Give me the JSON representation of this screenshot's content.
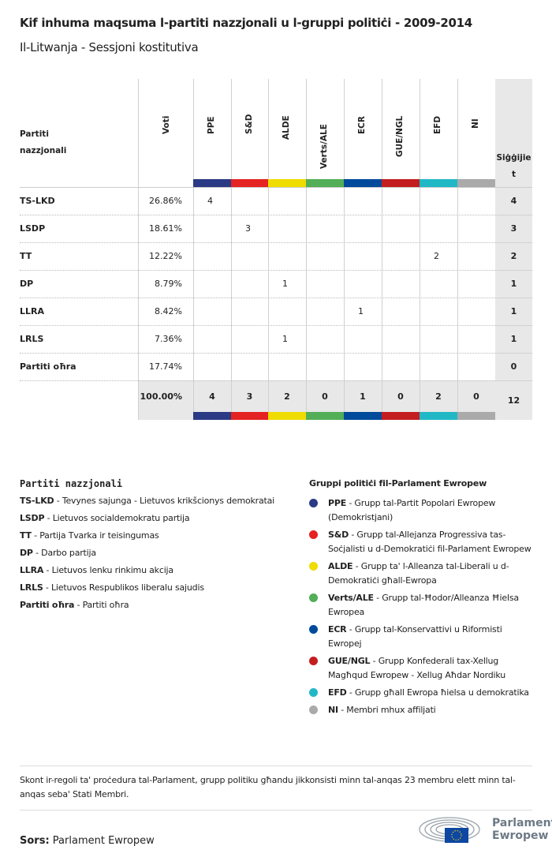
{
  "title": "Kif inhuma maqsuma l-partiti nazzjonali u l-gruppi politiċi - 2009-2014",
  "subtitle": "Il-Litwanja - Sessjoni kostitutiva",
  "table": {
    "party_header": "Partiti nazzjonali",
    "votes_header": "Voti",
    "seats_header": "Siġġijiet",
    "groups": [
      {
        "code": "PPE",
        "color": "#2a3a84"
      },
      {
        "code": "S&D",
        "color": "#e42322"
      },
      {
        "code": "ALDE",
        "color": "#efdc00"
      },
      {
        "code": "Verts/ALE",
        "color": "#52ae57"
      },
      {
        "code": "ECR",
        "color": "#004a9b"
      },
      {
        "code": "GUE/NGL",
        "color": "#c41d1f"
      },
      {
        "code": "EFD",
        "color": "#21b8c6"
      },
      {
        "code": "NI",
        "color": "#aaaaaa"
      }
    ],
    "rows": [
      {
        "party": "TS-LKD",
        "votes": "26.86%",
        "seats_by_group": [
          "4",
          "",
          "",
          "",
          "",
          "",
          "",
          ""
        ],
        "seats": "4"
      },
      {
        "party": "LSDP",
        "votes": "18.61%",
        "seats_by_group": [
          "",
          "3",
          "",
          "",
          "",
          "",
          "",
          ""
        ],
        "seats": "3"
      },
      {
        "party": "TT",
        "votes": "12.22%",
        "seats_by_group": [
          "",
          "",
          "",
          "",
          "",
          "",
          "2",
          ""
        ],
        "seats": "2"
      },
      {
        "party": "DP",
        "votes": "8.79%",
        "seats_by_group": [
          "",
          "",
          "1",
          "",
          "",
          "",
          "",
          ""
        ],
        "seats": "1"
      },
      {
        "party": "LLRA",
        "votes": "8.42%",
        "seats_by_group": [
          "",
          "",
          "",
          "",
          "1",
          "",
          "",
          ""
        ],
        "seats": "1"
      },
      {
        "party": "LRLS",
        "votes": "7.36%",
        "seats_by_group": [
          "",
          "",
          "1",
          "",
          "",
          "",
          "",
          ""
        ],
        "seats": "1"
      },
      {
        "party": "Partiti oħra",
        "votes": "17.74%",
        "seats_by_group": [
          "",
          "",
          "",
          "",
          "",
          "",
          "",
          ""
        ],
        "seats": "0"
      }
    ],
    "totals": {
      "votes": "100.00%",
      "by_group": [
        "4",
        "3",
        "2",
        "0",
        "1",
        "0",
        "2",
        "0"
      ],
      "seats": "12"
    }
  },
  "legend_parties": {
    "title": "Partiti nazzjonali",
    "items": [
      {
        "code": "TS-LKD",
        "name": "Tevynes sajunga - Lietuvos krikšcionys demokratai"
      },
      {
        "code": "LSDP",
        "name": "Lietuvos socialdemokratu partija"
      },
      {
        "code": "TT",
        "name": "Partija Tvarka ir teisingumas"
      },
      {
        "code": "DP",
        "name": "Darbo partija"
      },
      {
        "code": "LLRA",
        "name": "Lietuvos lenku rinkimu akcija"
      },
      {
        "code": "LRLS",
        "name": "Lietuvos Respublikos liberalu sajudis"
      },
      {
        "code": "Partiti oħra",
        "name": "Partiti oħra"
      }
    ]
  },
  "legend_groups": {
    "title": "Gruppi politiċi fil-Parlament Ewropew",
    "items": [
      {
        "code": "PPE",
        "name": "Grupp tal-Partit Popolari Ewropew (Demokristjani)"
      },
      {
        "code": "S&D",
        "name": "Grupp tal-Allejanza Progressiva tas-Soċjalisti u d-Demokratiċi fil-Parlament Ewropew"
      },
      {
        "code": "ALDE",
        "name": "Grupp ta' l-Alleanza tal-Liberali u d-Demokratiċi għall-Ewropa"
      },
      {
        "code": "Verts/ALE",
        "name": "Grupp tal-Ħodor/Alleanza Ħielsa Ewropea"
      },
      {
        "code": "ECR",
        "name": "Grupp tal-Konservattivi u Riformisti Ewropej"
      },
      {
        "code": "GUE/NGL",
        "name": "Grupp Konfederali tax-Xellug Magħqud Ewropew - Xellug Aħdar Nordiku"
      },
      {
        "code": "EFD",
        "name": "Grupp għall Ewropa ħielsa u demokratika"
      },
      {
        "code": "NI",
        "name": "Membri mhux affiljati"
      }
    ]
  },
  "note": "Skont ir-regoli ta' proċedura tal-Parlament, grupp politiku għandu jikkonsisti minn tal-anqas 23 membru elett minn tal-anqas seba' Stati Membri.",
  "source": {
    "label": "Sors:",
    "value": "Parlament Ewropew"
  },
  "logo": {
    "text_line1": "Parlament",
    "text_line2": "Ewropew"
  }
}
